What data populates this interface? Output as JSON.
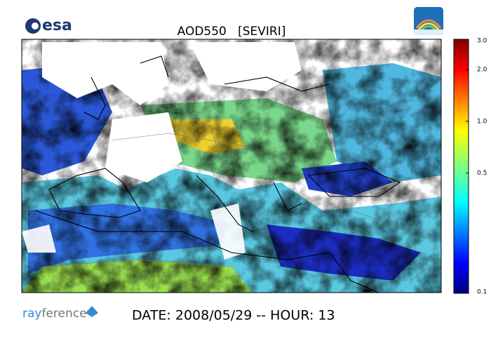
{
  "header": {
    "logo": "esa",
    "title": "AOD550   [SEVIRI]"
  },
  "colorbar": {
    "scale": "log",
    "lim": [
      0.1,
      3
    ],
    "ticks": [
      {
        "value": 3,
        "label": "3.0"
      },
      {
        "value": 2,
        "label": "2.0"
      },
      {
        "value": 1,
        "label": "1.0"
      },
      {
        "value": 0.5,
        "label": "0.5"
      },
      {
        "value": 0.1,
        "label": "0.1"
      }
    ]
  },
  "footer": {
    "logo_parts": [
      "ray",
      "ference"
    ],
    "caption": "DATE: 2008/05/29 -- HOUR: 13"
  }
}
